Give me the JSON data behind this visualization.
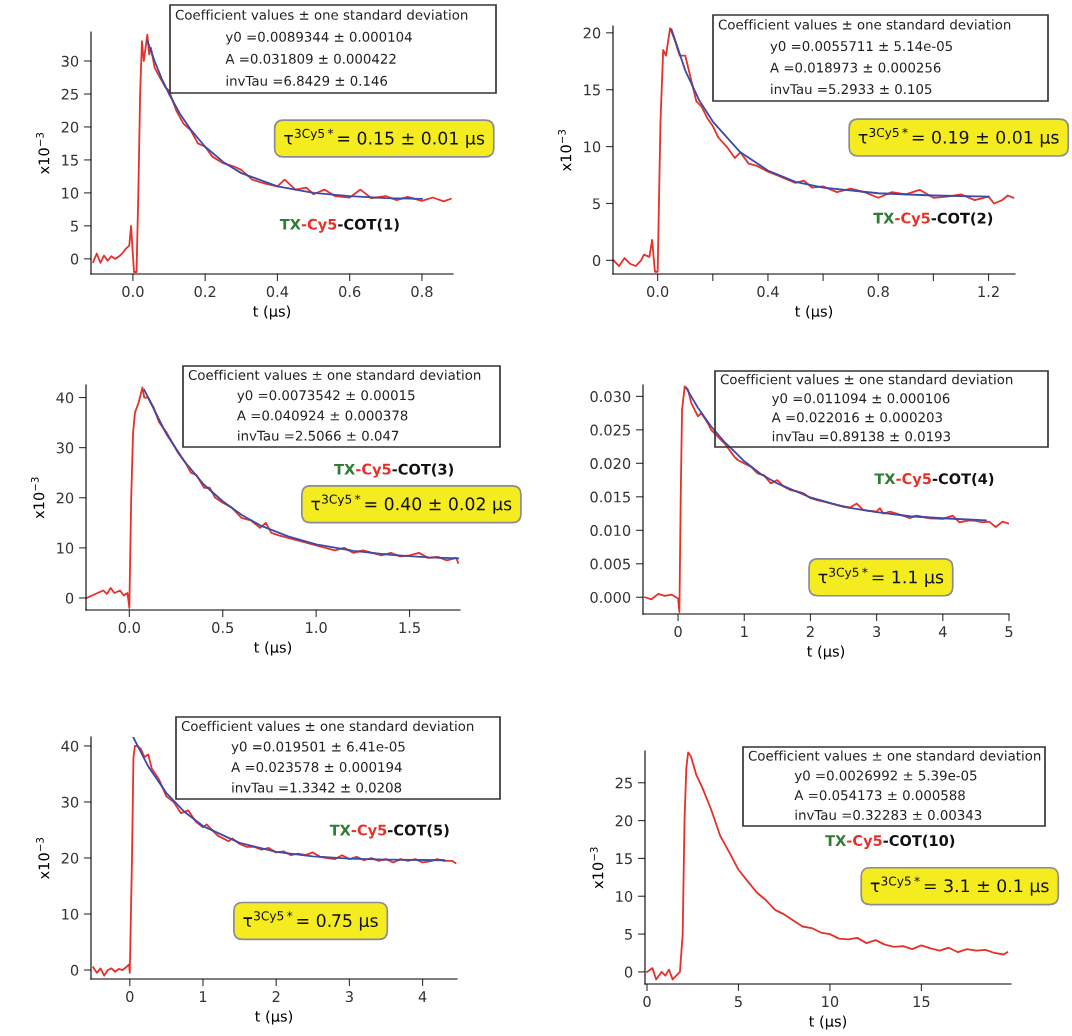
{
  "chart_data": [
    {
      "type": "line",
      "xlabel": "t (μs)",
      "ylabel": "x10$^{−3}$",
      "xlim": [
        -0.116,
        0.886
      ],
      "ylim": [
        -2.3,
        34.4
      ],
      "xticks": [
        {
          "value": 0,
          "label": "0.0"
        },
        0.2,
        0.4,
        0.6,
        0.8
      ],
      "yticks": [
        0,
        5,
        10,
        15,
        20,
        25,
        30
      ],
      "annotations": [
        "Coefficient values ± one standard deviation",
        "y0 =0.0089344 ± 0.000104",
        "A =0.031809 ± 0.000422",
        "invTau =6.8429 ± 0.146",
        "TX-Cy5-COT(1)",
        "τ$^{3Cy5*}$= 0.15 ± 0.01 μs"
      ],
      "series": [
        {
          "color": "#e8302a",
          "x": [
            -0.11,
            -0.1,
            -0.09,
            -0.08,
            -0.07,
            -0.06,
            -0.05,
            -0.04,
            -0.03,
            -0.02,
            -0.01,
            -0.005,
            0.0,
            0.003,
            0.01,
            0.015,
            0.02,
            0.025,
            0.03,
            0.035,
            0.04,
            0.045,
            0.05,
            0.06,
            0.07,
            0.08,
            0.09,
            0.1,
            0.12,
            0.14,
            0.16,
            0.18,
            0.2,
            0.22,
            0.25,
            0.28,
            0.3,
            0.33,
            0.36,
            0.4,
            0.42,
            0.45,
            0.48,
            0.5,
            0.53,
            0.56,
            0.6,
            0.63,
            0.66,
            0.7,
            0.73,
            0.76,
            0.8,
            0.83,
            0.86,
            0.88
          ],
          "values": [
            -0.5,
            0.8,
            -0.6,
            0.5,
            -0.3,
            0.4,
            0.0,
            0.3,
            0.8,
            1.5,
            2.0,
            5.0,
            0.5,
            -2,
            -2,
            10,
            25,
            33,
            30,
            32,
            34,
            31,
            32,
            29,
            28,
            27,
            26,
            25.5,
            22.5,
            20.5,
            19.5,
            17.5,
            17,
            15.5,
            14.5,
            14,
            13.5,
            12,
            11.5,
            11,
            12,
            10.5,
            10.8,
            9.8,
            10.5,
            9.5,
            9.3,
            10.5,
            9.2,
            9.5,
            8.9,
            9.4,
            8.8,
            9.3,
            8.7,
            9.1
          ]
        },
        {
          "color": "#3b4ba8",
          "x": [
            0.04,
            0.06,
            0.08,
            0.1,
            0.13,
            0.16,
            0.2,
            0.25,
            0.3,
            0.4,
            0.5,
            0.6,
            0.7,
            0.8
          ],
          "values": [
            33.1,
            30.0,
            27.3,
            25.0,
            22.0,
            19.6,
            17.0,
            14.7,
            13.0,
            11.0,
            10.0,
            9.5,
            9.2,
            9.1
          ]
        }
      ]
    },
    {
      "type": "line",
      "xlabel": "t (μs)",
      "ylabel": "x10$^{−3}$",
      "xlim": [
        -0.162,
        1.296
      ],
      "ylim": [
        -1.2,
        20.6
      ],
      "xticks": [
        {
          "value": 0,
          "label": "0.0"
        },
        {
          "value": 0.2,
          "label": null
        },
        0.4,
        {
          "value": 0.6,
          "label": null
        },
        0.8,
        {
          "value": 1.0,
          "label": null
        },
        1.2
      ],
      "yticks": [
        0,
        5,
        10,
        15,
        20
      ],
      "annotations": [
        "Coefficient values ± one standard deviation",
        "y0 =0.0055711 ± 5.14e-05",
        "A =0.018973 ± 0.000256",
        "invTau =5.2933 ± 0.105",
        "TX-Cy5-COT(2)",
        "τ$^{3Cy5*}$= 0.19 ± 0.01 μs"
      ],
      "series": [
        {
          "color": "#e8302a",
          "x": [
            -0.16,
            -0.14,
            -0.12,
            -0.1,
            -0.08,
            -0.06,
            -0.05,
            -0.03,
            -0.02,
            -0.01,
            0.0,
            0.01,
            0.02,
            0.03,
            0.045,
            0.06,
            0.08,
            0.1,
            0.12,
            0.14,
            0.16,
            0.18,
            0.2,
            0.22,
            0.25,
            0.28,
            0.3,
            0.33,
            0.36,
            0.4,
            0.43,
            0.46,
            0.5,
            0.53,
            0.56,
            0.6,
            0.65,
            0.7,
            0.75,
            0.8,
            0.85,
            0.9,
            0.95,
            1.0,
            1.05,
            1.1,
            1.15,
            1.2,
            1.22,
            1.25,
            1.27,
            1.29
          ],
          "values": [
            0,
            -0.5,
            0.2,
            -0.3,
            -0.5,
            0,
            0.5,
            0.3,
            1.8,
            -1,
            -1,
            12,
            18.5,
            18,
            20.4,
            19.5,
            18,
            18,
            16,
            14,
            13.5,
            12.5,
            11.8,
            10.8,
            10,
            9,
            9.5,
            8.5,
            8.3,
            7.8,
            7.5,
            7.2,
            6.8,
            7.0,
            6.4,
            6.5,
            6.0,
            6.3,
            6.0,
            5.5,
            6.0,
            5.8,
            6.2,
            5.5,
            5.6,
            5.8,
            5.3,
            5.6,
            5.0,
            5.3,
            5.7,
            5.5
          ]
        },
        {
          "color": "#3b4ba8",
          "x": [
            0.05,
            0.1,
            0.15,
            0.2,
            0.3,
            0.4,
            0.5,
            0.6,
            0.8,
            1.0,
            1.2
          ],
          "values": [
            20.3,
            16.7,
            14.1,
            12.2,
            9.5,
            7.9,
            6.9,
            6.4,
            5.9,
            5.7,
            5.6
          ]
        }
      ]
    },
    {
      "type": "line",
      "xlabel": "t (μs)",
      "ylabel": "x10$^{−3}$",
      "xlim": [
        -0.232,
        1.77
      ],
      "ylim": [
        -2.4,
        42.5
      ],
      "xticks": [
        {
          "value": 0,
          "label": "0.0"
        },
        0.5,
        {
          "value": 1.0,
          "label": "1.0"
        },
        1.5
      ],
      "yticks": [
        0,
        10,
        20,
        30,
        40
      ],
      "annotations": [
        "Coefficient values ± one standard deviation",
        "y0 =0.0073542 ± 0.00015",
        "A =0.040924 ± 0.000378",
        "invTau =2.5066 ± 0.047",
        "TX-Cy5-COT(3)",
        "τ$^{3Cy5*}$= 0.40 ± 0.02 μs"
      ],
      "series": [
        {
          "color": "#e8302a",
          "x": [
            -0.23,
            -0.2,
            -0.17,
            -0.14,
            -0.12,
            -0.1,
            -0.08,
            -0.05,
            -0.03,
            -0.01,
            0.0,
            0.01,
            0.02,
            0.03,
            0.05,
            0.07,
            0.08,
            0.1,
            0.13,
            0.16,
            0.2,
            0.23,
            0.26,
            0.3,
            0.33,
            0.36,
            0.4,
            0.43,
            0.46,
            0.5,
            0.55,
            0.6,
            0.65,
            0.7,
            0.73,
            0.76,
            0.8,
            0.85,
            0.9,
            1.0,
            1.1,
            1.15,
            1.2,
            1.25,
            1.3,
            1.35,
            1.4,
            1.45,
            1.5,
            1.55,
            1.6,
            1.65,
            1.7,
            1.75,
            1.76
          ],
          "values": [
            0,
            0.5,
            1.0,
            1.5,
            0.8,
            2.0,
            1.0,
            1.5,
            0.5,
            1.0,
            -2,
            20,
            33,
            37,
            39,
            42,
            40,
            40,
            38,
            35,
            33,
            31,
            29,
            27,
            25,
            24.5,
            22,
            22,
            20,
            19,
            18,
            16,
            15.5,
            14,
            15,
            13,
            12.5,
            12,
            11.5,
            10.5,
            9.5,
            10,
            9,
            9.5,
            9,
            8.5,
            9,
            8.3,
            8.5,
            9,
            8,
            8.2,
            7.5,
            8,
            7
          ]
        },
        {
          "color": "#3b4ba8",
          "x": [
            0.08,
            0.2,
            0.3,
            0.4,
            0.5,
            0.6,
            0.7,
            0.85,
            1.0,
            1.2,
            1.4,
            1.6,
            1.76
          ],
          "values": [
            41.5,
            32.6,
            27.0,
            22.6,
            19.3,
            16.6,
            14.5,
            12.3,
            10.7,
            9.4,
            8.6,
            8.1,
            7.9
          ]
        }
      ]
    },
    {
      "type": "line",
      "xlabel": "t (μs)",
      "xlim": [
        -0.53,
        5.0
      ],
      "ylim": [
        -0.0025,
        0.0317
      ],
      "xticks": [
        0,
        1,
        2,
        3,
        4,
        5
      ],
      "yticks": [
        {
          "value": 0,
          "label": "0.000"
        },
        0.005,
        {
          "value": 0.01,
          "label": "0.010"
        },
        0.015,
        {
          "value": 0.02,
          "label": "0.020"
        },
        0.025,
        {
          "value": 0.03,
          "label": "0.030"
        }
      ],
      "annotations": [
        "Coefficient values ± one standard deviation",
        "y0 =0.011094 ± 0.000106",
        "A =0.022016 ± 0.000203",
        "invTau =0.89138 ± 0.0193",
        "TX-Cy5-COT(4)",
        "τ$^{3Cy5*}$= 1.1 μs"
      ],
      "series": [
        {
          "color": "#e8302a",
          "x": [
            -0.5,
            -0.4,
            -0.3,
            -0.2,
            -0.1,
            0.0,
            0.02,
            0.04,
            0.06,
            0.1,
            0.15,
            0.2,
            0.3,
            0.35,
            0.45,
            0.5,
            0.7,
            0.85,
            0.9,
            1.0,
            1.1,
            1.2,
            1.3,
            1.4,
            1.5,
            1.6,
            1.7,
            1.8,
            1.9,
            2.0,
            2.1,
            2.2,
            2.4,
            2.6,
            2.7,
            2.8,
            3.0,
            3.05,
            3.1,
            3.2,
            3.4,
            3.5,
            3.6,
            3.8,
            4.0,
            4.15,
            4.25,
            4.4,
            4.5,
            4.6,
            4.7,
            4.8,
            4.9,
            5.0
          ],
          "values": [
            0,
            -0.0003,
            0.0005,
            0.0002,
            0.0004,
            -0.0002,
            -0.0022,
            0.015,
            0.028,
            0.0315,
            0.031,
            0.029,
            0.027,
            0.0275,
            0.026,
            0.025,
            0.023,
            0.021,
            0.0205,
            0.02,
            0.0195,
            0.0185,
            0.0182,
            0.017,
            0.0175,
            0.0165,
            0.016,
            0.0158,
            0.0155,
            0.0148,
            0.0145,
            0.0143,
            0.0138,
            0.0134,
            0.014,
            0.013,
            0.0128,
            0.0133,
            0.0125,
            0.0128,
            0.0122,
            0.0118,
            0.0122,
            0.0118,
            0.0117,
            0.0122,
            0.0112,
            0.0115,
            0.0114,
            0.0112,
            0.0113,
            0.0105,
            0.0113,
            0.011
          ]
        },
        {
          "color": "#3b4ba8",
          "x": [
            0.12,
            0.3,
            0.5,
            0.7,
            0.85,
            1.0,
            1.25,
            1.5,
            2.0,
            2.5,
            3.0,
            3.5,
            4.0,
            4.65
          ],
          "values": [
            0.0313,
            0.0283,
            0.0255,
            0.0232,
            0.0218,
            0.0203,
            0.0184,
            0.017,
            0.0149,
            0.0135,
            0.0127,
            0.0121,
            0.0118,
            0.0115
          ]
        }
      ]
    },
    {
      "type": "line",
      "xlabel": "t (μs)",
      "ylabel": "x10$^{−3}$",
      "xlim": [
        -0.53,
        4.47
      ],
      "ylim": [
        -1.6,
        41.6
      ],
      "xticks": [
        0,
        1,
        2,
        3,
        4
      ],
      "yticks": [
        0,
        10,
        20,
        30,
        40
      ],
      "annotations": [
        "Coefficient values ± one standard deviation",
        "y0 =0.019501 ± 6.41e-05",
        "A =0.023578 ± 0.000194",
        "invTau =1.3342 ± 0.0208",
        "TX-Cy5-COT(5)",
        "τ$^{3Cy5*}$= 0.75 μs"
      ],
      "series": [
        {
          "color": "#e8302a",
          "x": [
            -0.5,
            -0.45,
            -0.4,
            -0.35,
            -0.3,
            -0.25,
            -0.2,
            -0.15,
            -0.1,
            -0.05,
            -0.01,
            0.0,
            0.03,
            0.05,
            0.07,
            0.1,
            0.15,
            0.2,
            0.25,
            0.3,
            0.4,
            0.5,
            0.6,
            0.7,
            0.8,
            0.9,
            1.0,
            1.05,
            1.2,
            1.35,
            1.4,
            1.5,
            1.6,
            1.7,
            1.8,
            1.9,
            2.0,
            2.1,
            2.2,
            2.3,
            2.4,
            2.5,
            2.6,
            2.7,
            2.8,
            2.9,
            3.0,
            3.1,
            3.2,
            3.3,
            3.4,
            3.5,
            3.6,
            3.7,
            3.8,
            3.9,
            4.0,
            4.1,
            4.2,
            4.3,
            4.4,
            4.45
          ],
          "values": [
            0.5,
            -0.5,
            0.3,
            -1,
            0,
            0.3,
            -0.3,
            0.2,
            0,
            0.5,
            1.0,
            -0.5,
            20,
            38,
            40,
            40,
            39.5,
            38,
            38.5,
            36,
            34,
            31,
            30,
            28,
            28.5,
            26.5,
            25.5,
            26,
            24,
            23,
            23.5,
            22.5,
            22,
            22,
            21.5,
            21.8,
            21,
            21.2,
            20.5,
            20.8,
            20.5,
            21,
            20.2,
            20,
            19.8,
            20.5,
            19.8,
            20.2,
            19.6,
            20,
            19.5,
            19.8,
            19.2,
            19.8,
            19.5,
            19.8,
            19.2,
            19.4,
            19.8,
            19.5,
            19.5,
            19.1
          ]
        },
        {
          "color": "#3b4ba8",
          "x": [
            0.05,
            0.25,
            0.5,
            0.75,
            1.0,
            1.5,
            2.0,
            2.5,
            3.0,
            3.5,
            4.3
          ],
          "values": [
            41.5,
            36.4,
            31.6,
            28.2,
            25.7,
            22.7,
            21.1,
            20.3,
            19.9,
            19.7,
            19.6
          ]
        }
      ]
    },
    {
      "type": "line",
      "xlabel": "t (μs)",
      "ylabel": "x10$^{−3}$",
      "xlim": [
        -0.11,
        19.9
      ],
      "ylim": [
        -1.6,
        29.2
      ],
      "xticks": [
        0,
        5,
        10,
        15
      ],
      "yticks": [
        0,
        5,
        10,
        15,
        20,
        25
      ],
      "annotations": [
        "Coefficient values ± one standard deviation",
        "y0 =0.0026992 ± 5.39e-05",
        "A =0.054173 ± 0.000588",
        "invTau =0.32283 ± 0.00343",
        "TX-Cy5-COT(10)",
        "τ$^{3Cy5*}$= 3.1 ± 0.1 μs"
      ],
      "series": [
        {
          "color": "#e8302a",
          "x": [
            0,
            0.3,
            0.5,
            0.8,
            1.0,
            1.2,
            1.4,
            1.6,
            1.8,
            1.95,
            2.05,
            2.15,
            2.25,
            2.4,
            2.7,
            3.0,
            3.5,
            4,
            4.5,
            5,
            5.5,
            6,
            6.5,
            7,
            7.5,
            8,
            8.5,
            9,
            9.5,
            10,
            10.5,
            11,
            11.5,
            12,
            12.5,
            13,
            13.5,
            14,
            14.5,
            15,
            15.5,
            16,
            16.5,
            17,
            17.5,
            18,
            18.5,
            19,
            19.5,
            19.7
          ],
          "values": [
            0,
            0.5,
            -1,
            0,
            -0.5,
            0.3,
            -1,
            -0.5,
            0,
            5,
            20,
            27,
            29,
            28.5,
            26,
            24.5,
            21.5,
            18,
            15.8,
            13.5,
            12,
            10.5,
            9.5,
            8.2,
            7.6,
            6.8,
            6.0,
            5.8,
            5.2,
            5.0,
            4.4,
            4.3,
            4.5,
            3.8,
            4.2,
            3.6,
            3.3,
            3.4,
            3.0,
            3.5,
            3.1,
            2.8,
            3.2,
            2.6,
            3.0,
            2.8,
            2.9,
            2.5,
            2.3,
            2.6
          ]
        }
      ]
    }
  ]
}
